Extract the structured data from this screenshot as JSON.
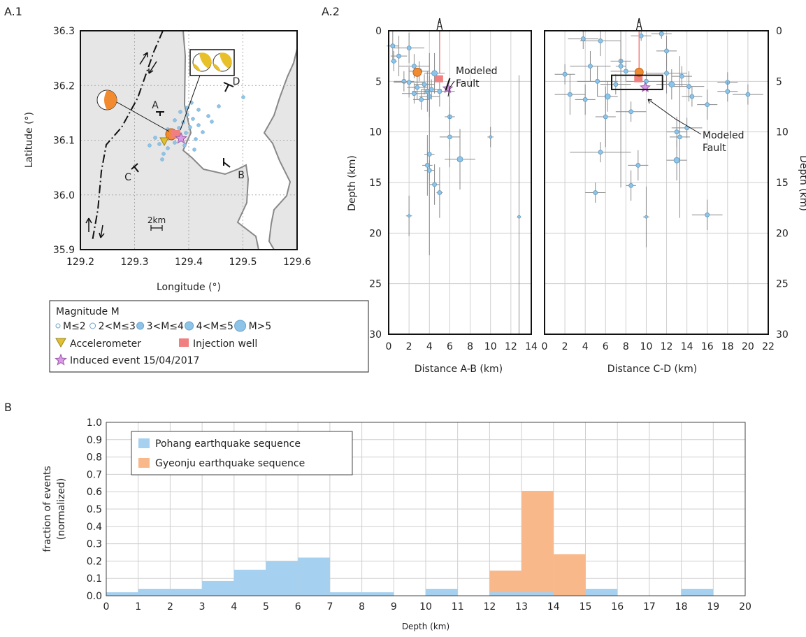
{
  "panels": {
    "a1_label": "A.1",
    "a2_label": "A.2",
    "b_label": "B"
  },
  "map": {
    "xlabel": "Longitude (°)",
    "ylabel": "Latitude (°)",
    "xticks": [
      "129.2",
      "129.3",
      "129.4",
      "129.5",
      "129.6"
    ],
    "yticks": [
      "36.3",
      "36.2",
      "36.1",
      "36.0",
      "35.9"
    ],
    "x_range": [
      129.2,
      129.6
    ],
    "y_range": [
      35.9,
      36.3
    ],
    "section_labels": [
      "A",
      "B",
      "C",
      "D"
    ],
    "scale_label": "2km",
    "land_color": "#e6e6e6",
    "event_color": "#8ec4e8",
    "mainshock_color": "#f28b30",
    "induced_color": "#d99ae6",
    "well_color": "#f08080",
    "accelerometer_color": "#e0c030"
  },
  "legend_map": {
    "title": "Magnitude M",
    "mag_classes": [
      "M≤2",
      "2<M≤3",
      "3<M≤4",
      "4<M≤5",
      "M>5"
    ],
    "accelerometer": "Accelerometer",
    "injection_well": "Injection well",
    "induced_event": "Induced event 15/04/2017"
  },
  "section_ab": {
    "xlabel": "Distance  A-B (km)",
    "ylabel": "Depth (km)",
    "xticks": [
      "0",
      "2",
      "4",
      "6",
      "8",
      "10",
      "12",
      "14"
    ],
    "yticks": [
      "0",
      "5",
      "10",
      "15",
      "20",
      "25",
      "30"
    ],
    "x_range": [
      0,
      14
    ],
    "y_range": [
      0,
      30
    ],
    "annotation": [
      "Modeled",
      "Fault"
    ]
  },
  "section_cd": {
    "xlabel": "Distance  C-D (km)",
    "ylabel": "Depth (km)",
    "xticks": [
      "0",
      "2",
      "4",
      "6",
      "8",
      "10",
      "12",
      "14",
      "16",
      "18",
      "20",
      "22"
    ],
    "yticks": [
      "0",
      "5",
      "10",
      "15",
      "20",
      "25",
      "30"
    ],
    "x_range": [
      0,
      22
    ],
    "y_range": [
      0,
      30
    ],
    "annotation": [
      "Modeled",
      "Fault"
    ]
  },
  "chart_data": {
    "type": "bar",
    "xlabel": "Depth (km)",
    "ylabel": "fraction of events (normalized)",
    "ylabel_lines": [
      "fraction of events",
      "(normalized)"
    ],
    "xlim": [
      0,
      20
    ],
    "ylim": [
      0,
      1.0
    ],
    "xticks": [
      "0",
      "1",
      "2",
      "3",
      "4",
      "5",
      "6",
      "7",
      "8",
      "9",
      "10",
      "11",
      "12",
      "13",
      "14",
      "15",
      "16",
      "17",
      "18",
      "19",
      "20"
    ],
    "yticks": [
      "0.0",
      "0.1",
      "0.2",
      "0.3",
      "0.4",
      "0.5",
      "0.6",
      "0.7",
      "0.8",
      "0.9",
      "1.0"
    ],
    "bin_edges": [
      0,
      1,
      2,
      3,
      4,
      5,
      6,
      7,
      8,
      9,
      10,
      11,
      12,
      13,
      14,
      15,
      16,
      17,
      18,
      19,
      20
    ],
    "legend_position": "top-left",
    "grid": true,
    "series": [
      {
        "name": "Pohang earthquake sequence",
        "color": "#a6d0ef",
        "values": [
          0.02,
          0.04,
          0.04,
          0.085,
          0.15,
          0.2,
          0.22,
          0.02,
          0.02,
          0,
          0.04,
          0,
          0.02,
          0.02,
          0,
          0.04,
          0,
          0,
          0.04,
          0
        ]
      },
      {
        "name": "Gyeonju earthquake sequence",
        "color": "#f8b88a",
        "values": [
          0,
          0,
          0,
          0,
          0,
          0,
          0,
          0,
          0,
          0,
          0,
          0,
          0.145,
          0.605,
          0.24,
          0,
          0,
          0,
          0,
          0
        ]
      }
    ]
  }
}
